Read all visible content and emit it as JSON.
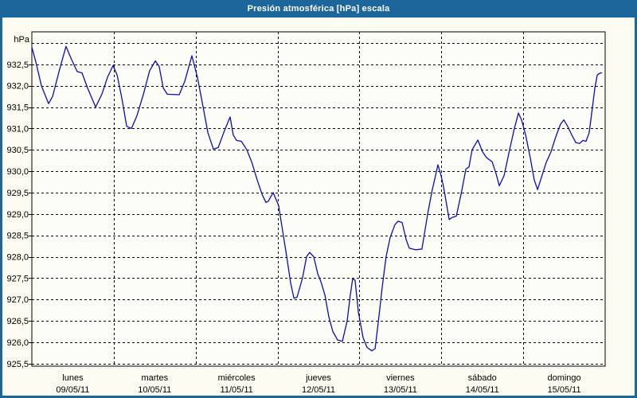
{
  "title": "Presión atmosférica [hPa] escala",
  "colors": {
    "titlebar_bg": "#1d669c",
    "titlebar_text": "#ffffff",
    "frame_border": "#1d669c",
    "page_bg": "#fbfbf2",
    "plot_bg": "#fdfdf8",
    "grid": "#000000",
    "axis": "#000000",
    "label_text": "#000000",
    "series_line": "#0a0ac0"
  },
  "chart_data": {
    "type": "line",
    "title": "Presión atmosférica [hPa] escala",
    "ylabel": "hPa",
    "grid": "dashed",
    "legend_position": "none",
    "y_range": [
      925.44,
      933.26
    ],
    "x_range_hours": [
      0,
      168
    ],
    "y_gridlines": [
      933.0,
      932.5,
      932.0,
      931.5,
      931.0,
      930.5,
      930.0,
      929.5,
      929.0,
      928.5,
      928.0,
      927.5,
      927.0,
      926.5,
      926.0,
      925.5
    ],
    "y_ticks": [
      {
        "value": 932.5,
        "label": "932,5"
      },
      {
        "value": 932.0,
        "label": "932,0"
      },
      {
        "value": 931.5,
        "label": "931,5"
      },
      {
        "value": 931.0,
        "label": "931,0"
      },
      {
        "value": 930.5,
        "label": "930,5"
      },
      {
        "value": 930.0,
        "label": "930,0"
      },
      {
        "value": 929.5,
        "label": "929,5"
      },
      {
        "value": 929.0,
        "label": "929,0"
      },
      {
        "value": 928.5,
        "label": "928,5"
      },
      {
        "value": 928.0,
        "label": "928,0"
      },
      {
        "value": 927.5,
        "label": "927,5"
      },
      {
        "value": 927.0,
        "label": "927,0"
      },
      {
        "value": 926.5,
        "label": "926,5"
      },
      {
        "value": 926.0,
        "label": "926,0"
      },
      {
        "value": 925.5,
        "label": "925,5"
      }
    ],
    "x_days": [
      {
        "name": "lunes",
        "date": "09/05/11"
      },
      {
        "name": "martes",
        "date": "10/05/11"
      },
      {
        "name": "miércoles",
        "date": "11/05/11"
      },
      {
        "name": "jueves",
        "date": "12/05/11"
      },
      {
        "name": "viernes",
        "date": "13/05/11"
      },
      {
        "name": "sábado",
        "date": "14/05/11"
      },
      {
        "name": "domingo",
        "date": "15/05/11"
      }
    ],
    "series": [
      {
        "name": "Presión atmosférica",
        "unit": "hPa",
        "color": "#0a0ac0",
        "points_hours_hpa": [
          [
            0,
            932.9
          ],
          [
            1.2,
            932.55
          ],
          [
            2.8,
            932.0
          ],
          [
            4.9,
            931.58
          ],
          [
            6.1,
            931.75
          ],
          [
            8.2,
            932.4
          ],
          [
            10,
            932.92
          ],
          [
            11.7,
            932.6
          ],
          [
            13.3,
            932.33
          ],
          [
            14.7,
            932.3
          ],
          [
            16.3,
            931.95
          ],
          [
            18.7,
            931.5
          ],
          [
            20.5,
            931.8
          ],
          [
            22.2,
            932.2
          ],
          [
            23.8,
            932.47
          ],
          [
            25,
            932.25
          ],
          [
            26.4,
            931.7
          ],
          [
            27.8,
            931.05
          ],
          [
            29.2,
            931.0
          ],
          [
            30.8,
            931.3
          ],
          [
            32.7,
            931.8
          ],
          [
            34.5,
            932.35
          ],
          [
            36.2,
            932.58
          ],
          [
            37.3,
            932.45
          ],
          [
            38.5,
            931.95
          ],
          [
            39.7,
            931.8
          ],
          [
            43.2,
            931.79
          ],
          [
            44.8,
            932.1
          ],
          [
            46.9,
            932.7
          ],
          [
            48.5,
            932.2
          ],
          [
            50.2,
            931.5
          ],
          [
            51.6,
            930.9
          ],
          [
            53.2,
            930.52
          ],
          [
            54.6,
            930.55
          ],
          [
            56.2,
            930.9
          ],
          [
            58.1,
            931.27
          ],
          [
            59,
            930.85
          ],
          [
            60,
            930.72
          ],
          [
            61.4,
            930.7
          ],
          [
            63,
            930.5
          ],
          [
            64.5,
            930.2
          ],
          [
            66,
            929.8
          ],
          [
            67.5,
            929.45
          ],
          [
            68.6,
            929.27
          ],
          [
            69.3,
            929.3
          ],
          [
            70.7,
            929.5
          ],
          [
            72.3,
            929.2
          ],
          [
            73.5,
            928.6
          ],
          [
            74.7,
            928.0
          ],
          [
            75.8,
            927.4
          ],
          [
            76.8,
            927.03
          ],
          [
            77.7,
            927.05
          ],
          [
            79.3,
            927.5
          ],
          [
            80.5,
            928.0
          ],
          [
            81.4,
            928.1
          ],
          [
            82.6,
            928.0
          ],
          [
            83.8,
            927.6
          ],
          [
            84.7,
            927.42
          ],
          [
            85.9,
            927.1
          ],
          [
            87,
            926.6
          ],
          [
            88.2,
            926.25
          ],
          [
            89.6,
            926.05
          ],
          [
            91,
            926.02
          ],
          [
            92.4,
            926.5
          ],
          [
            93.3,
            927.1
          ],
          [
            94,
            927.48
          ],
          [
            94.7,
            927.45
          ],
          [
            95.7,
            926.7
          ],
          [
            97.1,
            926.1
          ],
          [
            98.2,
            925.88
          ],
          [
            99.6,
            925.8
          ],
          [
            100.6,
            925.85
          ],
          [
            101.7,
            926.6
          ],
          [
            102.7,
            927.3
          ],
          [
            103.8,
            928.0
          ],
          [
            105,
            928.45
          ],
          [
            106.4,
            928.75
          ],
          [
            107.3,
            928.83
          ],
          [
            108.5,
            928.8
          ],
          [
            109.7,
            928.4
          ],
          [
            110.6,
            928.2
          ],
          [
            112.5,
            928.16
          ],
          [
            114.3,
            928.18
          ],
          [
            116,
            929.0
          ],
          [
            117.3,
            929.55
          ],
          [
            118.3,
            929.9
          ],
          [
            119,
            930.15
          ],
          [
            119.9,
            929.9
          ],
          [
            120.6,
            929.65
          ],
          [
            121.6,
            929.2
          ],
          [
            122.3,
            928.87
          ],
          [
            123.2,
            928.92
          ],
          [
            124.4,
            928.95
          ],
          [
            126,
            929.55
          ],
          [
            127.2,
            930.05
          ],
          [
            128.1,
            930.1
          ],
          [
            129,
            930.5
          ],
          [
            130.7,
            930.73
          ],
          [
            132.1,
            930.45
          ],
          [
            133.2,
            930.32
          ],
          [
            134.9,
            930.22
          ],
          [
            136,
            929.95
          ],
          [
            137,
            929.66
          ],
          [
            138.4,
            929.9
          ],
          [
            140,
            930.5
          ],
          [
            141.4,
            931.0
          ],
          [
            142.6,
            931.36
          ],
          [
            143.5,
            931.2
          ],
          [
            144.7,
            930.85
          ],
          [
            146.1,
            930.3
          ],
          [
            147.2,
            929.8
          ],
          [
            148.2,
            929.57
          ],
          [
            149.3,
            929.85
          ],
          [
            150.7,
            930.2
          ],
          [
            152.1,
            930.45
          ],
          [
            153.5,
            930.8
          ],
          [
            154.9,
            931.1
          ],
          [
            155.9,
            931.2
          ],
          [
            157,
            931.05
          ],
          [
            158.2,
            930.85
          ],
          [
            159.4,
            930.67
          ],
          [
            160.5,
            930.65
          ],
          [
            161.5,
            930.72
          ],
          [
            162.4,
            930.7
          ],
          [
            163.3,
            930.9
          ],
          [
            164.3,
            931.5
          ],
          [
            165,
            931.95
          ],
          [
            165.7,
            932.25
          ],
          [
            166.6,
            932.3
          ],
          [
            167,
            932.3
          ]
        ]
      }
    ]
  }
}
